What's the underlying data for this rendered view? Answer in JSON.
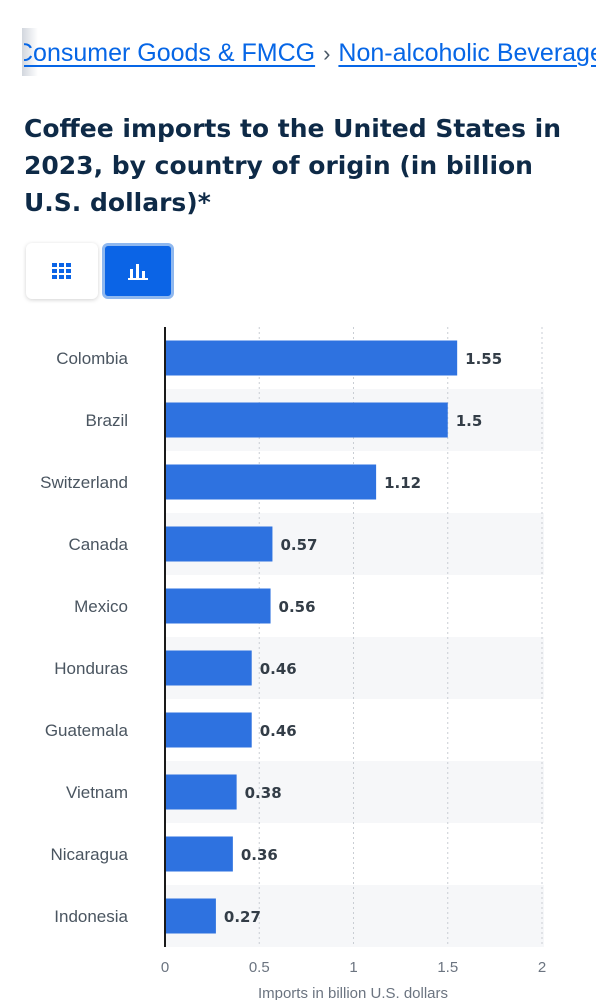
{
  "breadcrumb": {
    "items": [
      "Consumer Goods & FMCG",
      "Non-alcoholic Beverages"
    ],
    "separator": "›"
  },
  "view_toggle": {
    "table_icon": "table-grid-icon",
    "chart_icon": "bar-chart-icon",
    "active": "chart"
  },
  "colors": {
    "bar": "#2e72e0",
    "accent": "#0b64e6",
    "link": "#0666e6"
  },
  "chart_data": {
    "type": "bar",
    "orientation": "horizontal",
    "title": "Coffee imports to the United States in 2023, by country of origin (in billion U.S. dollars)*",
    "categories": [
      "Colombia",
      "Brazil",
      "Switzerland",
      "Canada",
      "Mexico",
      "Honduras",
      "Guatemala",
      "Vietnam",
      "Nicaragua",
      "Indonesia"
    ],
    "values": [
      1.55,
      1.5,
      1.12,
      0.57,
      0.56,
      0.46,
      0.46,
      0.38,
      0.36,
      0.27
    ],
    "value_labels": [
      "1.55",
      "1.5",
      "1.12",
      "0.57",
      "0.56",
      "0.46",
      "0.46",
      "0.38",
      "0.36",
      "0.27"
    ],
    "xlabel": "Imports in billion U.S. dollars",
    "xlim": [
      0,
      2
    ],
    "xticks": [
      0,
      0.5,
      1,
      1.5,
      2
    ],
    "xtick_labels": [
      "0",
      "0.5",
      "1",
      "1.5",
      "2"
    ],
    "grid": "vertical dotted",
    "alternating_row_bands": true
  }
}
